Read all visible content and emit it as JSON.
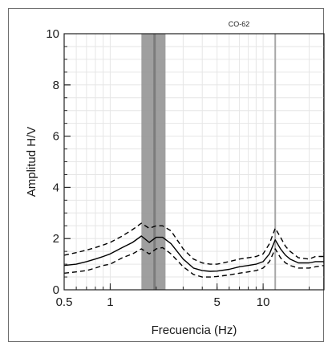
{
  "chart_data": {
    "type": "line",
    "title": "CO-62",
    "xlabel": "Frecuencia (Hz)",
    "ylabel": "Amplitud H/V",
    "x_scale": "log",
    "xlim": [
      0.5,
      25
    ],
    "ylim": [
      0,
      10
    ],
    "grid": true,
    "x_ticks": [
      {
        "value": 0.5,
        "label": "0.5"
      },
      {
        "value": 1,
        "label": "1"
      },
      {
        "value": 5,
        "label": "5"
      },
      {
        "value": 10,
        "label": "10"
      }
    ],
    "y_ticks": [
      {
        "value": 0,
        "label": "0"
      },
      {
        "value": 2,
        "label": "2"
      },
      {
        "value": 4,
        "label": "4"
      },
      {
        "value": 6,
        "label": "6"
      },
      {
        "value": 8,
        "label": "8"
      },
      {
        "value": 10,
        "label": "10"
      }
    ],
    "band": {
      "x0": 1.6,
      "x1": 2.3
    },
    "band_center": 1.95,
    "vertical_line": 12.0,
    "colors": {
      "mean": "#000000",
      "std": "#000000",
      "band": "#9a9a9a",
      "band_center": "#7c7c7c",
      "vline": "#a8a8a8",
      "grid": "#e6e6e6"
    },
    "series": [
      {
        "style": "solid",
        "x": [
          0.5,
          0.6,
          0.7,
          0.8,
          0.9,
          1.0,
          1.2,
          1.4,
          1.6,
          1.8,
          2.0,
          2.2,
          2.5,
          3.0,
          3.5,
          4.0,
          4.5,
          5.0,
          6.0,
          7.0,
          8.0,
          9.0,
          10.0,
          11.0,
          12.0,
          13.0,
          14.0,
          15.0,
          17.0,
          20.0,
          22.0,
          25.0
        ],
        "y": [
          0.95,
          1.0,
          1.1,
          1.2,
          1.3,
          1.4,
          1.65,
          1.85,
          2.1,
          1.85,
          2.05,
          2.05,
          1.8,
          1.2,
          0.85,
          0.75,
          0.72,
          0.73,
          0.8,
          0.9,
          0.95,
          1.0,
          1.1,
          1.4,
          1.95,
          1.6,
          1.35,
          1.2,
          1.05,
          1.05,
          1.1,
          1.1
        ]
      },
      {
        "style": "dashed",
        "x": [
          0.5,
          0.6,
          0.7,
          0.8,
          0.9,
          1.0,
          1.2,
          1.4,
          1.6,
          1.8,
          2.0,
          2.2,
          2.5,
          3.0,
          3.5,
          4.0,
          4.5,
          5.0,
          6.0,
          7.0,
          8.0,
          9.0,
          10.0,
          11.0,
          12.0,
          13.0,
          14.0,
          15.0,
          17.0,
          20.0,
          22.0,
          25.0
        ],
        "y": [
          1.35,
          1.45,
          1.55,
          1.65,
          1.75,
          1.85,
          2.1,
          2.35,
          2.6,
          2.4,
          2.5,
          2.5,
          2.3,
          1.6,
          1.2,
          1.05,
          1.0,
          1.0,
          1.1,
          1.2,
          1.25,
          1.3,
          1.4,
          1.8,
          2.4,
          2.05,
          1.7,
          1.5,
          1.25,
          1.2,
          1.3,
          1.3
        ]
      },
      {
        "style": "dashed",
        "x": [
          0.5,
          0.6,
          0.7,
          0.8,
          0.9,
          1.0,
          1.2,
          1.4,
          1.6,
          1.8,
          2.0,
          2.2,
          2.5,
          3.0,
          3.5,
          4.0,
          4.5,
          5.0,
          6.0,
          7.0,
          8.0,
          9.0,
          10.0,
          11.0,
          12.0,
          13.0,
          14.0,
          15.0,
          17.0,
          20.0,
          22.0,
          25.0
        ],
        "y": [
          0.65,
          0.7,
          0.75,
          0.85,
          0.95,
          1.0,
          1.25,
          1.4,
          1.6,
          1.4,
          1.6,
          1.65,
          1.4,
          0.9,
          0.6,
          0.5,
          0.5,
          0.52,
          0.58,
          0.65,
          0.7,
          0.75,
          0.85,
          1.1,
          1.6,
          1.25,
          1.05,
          0.95,
          0.85,
          0.85,
          0.9,
          0.95
        ]
      }
    ]
  }
}
